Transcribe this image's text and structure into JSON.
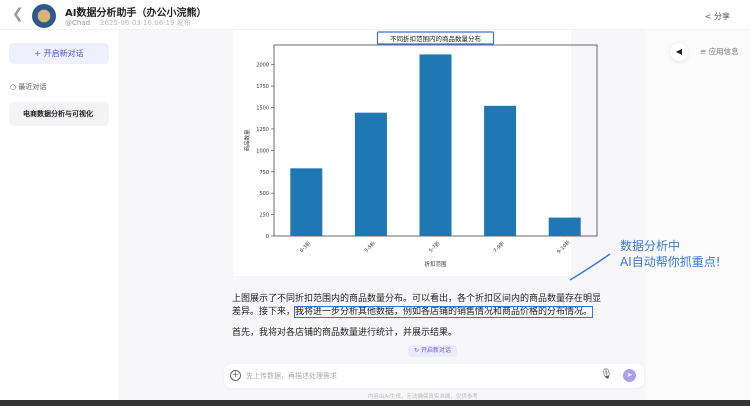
{
  "header": {
    "back_icon": "chevron-left",
    "title": "AI数据分析助手（办公小浣熊）",
    "author": "@Chad",
    "published": "2025-06-03 16:06:19 发布",
    "share": "分享"
  },
  "sidebar": {
    "new_chat": "开启新对话",
    "recent_label": "最近对话",
    "conversations": [
      "电商数据分析与可视化"
    ]
  },
  "right_panel": {
    "app_info": "应用信息"
  },
  "chart_data": {
    "type": "bar",
    "title": "不同折扣范围内的商品数量分布",
    "xlabel": "折扣范围",
    "ylabel": "商品数量",
    "categories": [
      "0-3折",
      "3-5折",
      "5-7折",
      "7-9折",
      "9-10折"
    ],
    "values": [
      790,
      1440,
      2120,
      1520,
      215
    ],
    "ylim": [
      0,
      2230
    ],
    "yticks": [
      0,
      250,
      500,
      750,
      1000,
      1250,
      1500,
      1750,
      2000
    ],
    "color": "#1f77b4",
    "grid": false
  },
  "message": {
    "line1": "上图展示了不同折扣范围内的商品数量分布。可以看出，各个折扣区间内的商品数量存在明显差异。接下来，",
    "highlight": "我将进一步分析其他数据，例如各店铺的销售情况和商品价格的分布情况。",
    "line2": "首先，我将对各店铺的商品数量进行统计，并展示结果。"
  },
  "regenerate": "开启新对话",
  "input": {
    "placeholder": "先上传数据，再描述处理需求"
  },
  "footer": "内容由AI生成，无法确保真实准确，仅供参考",
  "annotation": {
    "line1": "数据分析中",
    "line2": "AI自动帮你抓重点!",
    "color": "#3b7ad9"
  }
}
